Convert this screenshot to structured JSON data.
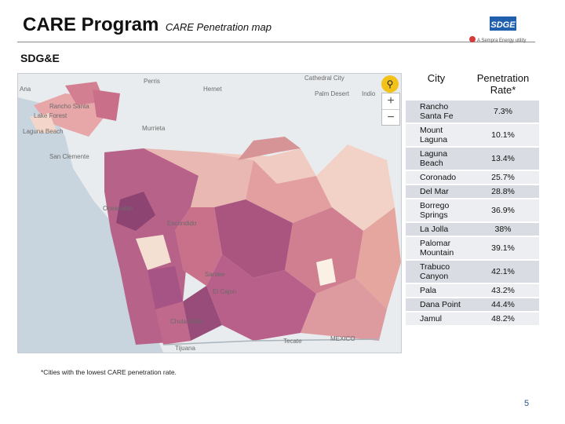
{
  "slide": {
    "title": "CARE Program",
    "subtitle": "CARE Penetration map",
    "section": "SDG&E",
    "footnote": "*Cities with the lowest CARE penetration rate.",
    "page_number": "5"
  },
  "logo": {
    "name": "SDGE",
    "tagline": "A Sempra Energy utility"
  },
  "map": {
    "labels": [
      "Perris",
      "Hemet",
      "Cathedral City",
      "Palm Desert",
      "Indio",
      "Ana",
      "Rancho Santa",
      "Lake Forest",
      "Laguna Beach",
      "Murrieta",
      "San Clemente",
      "Oceanside",
      "Escondido",
      "Santee",
      "El Cajon",
      "Chula Vista",
      "Tijuana",
      "Tecate",
      "MEXICO"
    ],
    "controls": {
      "zoom_in": "+",
      "zoom_out": "−"
    }
  },
  "table": {
    "headers": [
      "City",
      "Penetration Rate*"
    ],
    "rows": [
      {
        "city": "Rancho Santa Fe",
        "rate": "7.3%"
      },
      {
        "city": "Mount Laguna",
        "rate": "10.1%"
      },
      {
        "city": "Laguna Beach",
        "rate": "13.4%"
      },
      {
        "city": "Coronado",
        "rate": "25.7%"
      },
      {
        "city": "Del Mar",
        "rate": "28.8%"
      },
      {
        "city": "Borrego Springs",
        "rate": "36.9%"
      },
      {
        "city": "La Jolla",
        "rate": "38%"
      },
      {
        "city": "Palomar Mountain",
        "rate": "39.1%"
      },
      {
        "city": "Trabuco Canyon",
        "rate": "42.1%"
      },
      {
        "city": "Pala",
        "rate": "43.2%"
      },
      {
        "city": "Dana Point",
        "rate": "44.4%"
      },
      {
        "city": "Jamul",
        "rate": "48.2%"
      }
    ]
  }
}
